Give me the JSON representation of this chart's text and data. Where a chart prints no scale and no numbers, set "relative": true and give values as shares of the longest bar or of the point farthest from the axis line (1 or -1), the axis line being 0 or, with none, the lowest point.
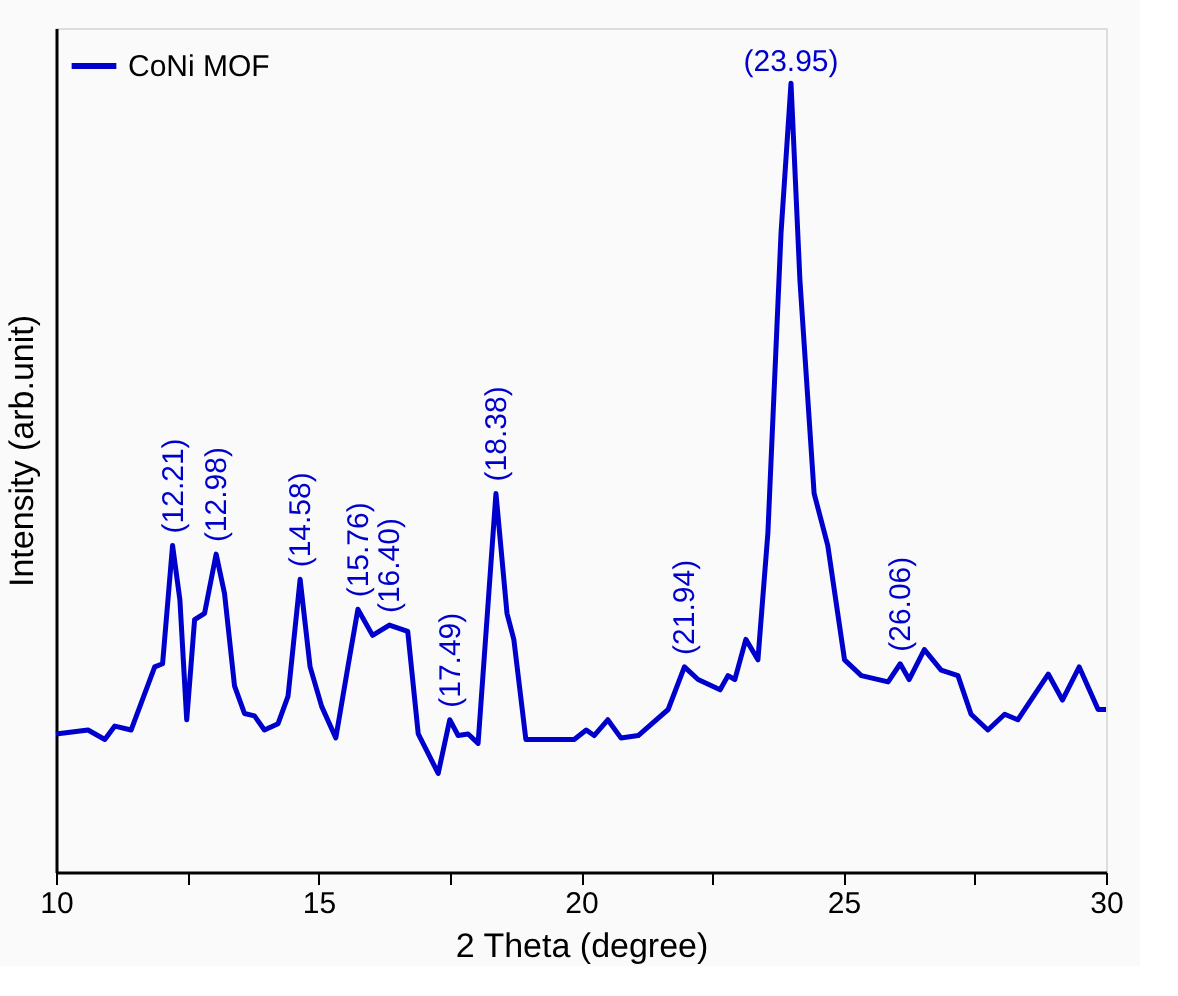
{
  "chart_data": {
    "type": "line",
    "xlabel": "2 Theta (degree)",
    "ylabel": "Intensity (arb.unit)",
    "relative": true,
    "xlim": [
      10,
      30
    ],
    "xticks": [
      10,
      {
        "value": 12.5,
        "label": null
      },
      15,
      {
        "value": 17.5,
        "label": null
      },
      20,
      {
        "value": 22.5,
        "label": null
      },
      25,
      {
        "value": 27.5,
        "label": null
      },
      30
    ],
    "grid": false,
    "legend": "top left",
    "marker": "none",
    "line_style": "solid",
    "series": [
      {
        "name": "CoNi MOF",
        "color": "#0000cc",
        "x": [
          10.0,
          10.61,
          10.93,
          11.12,
          11.43,
          11.88,
          12.03,
          12.22,
          12.36,
          12.49,
          12.64,
          12.83,
          13.05,
          13.21,
          13.4,
          13.59,
          13.78,
          13.97,
          14.23,
          14.42,
          14.65,
          14.84,
          15.06,
          15.33,
          15.56,
          15.75,
          16.03,
          16.35,
          16.7,
          16.9,
          17.09,
          17.28,
          17.5,
          17.66,
          17.85,
          18.04,
          18.38,
          18.59,
          18.72,
          18.95,
          19.87,
          20.1,
          20.25,
          20.51,
          20.76,
          21.09,
          21.66,
          21.97,
          22.23,
          22.65,
          22.8,
          22.93,
          23.14,
          23.37,
          23.56,
          23.81,
          24.0,
          24.17,
          24.44,
          24.7,
          25.02,
          25.34,
          25.85,
          26.08,
          26.25,
          26.54,
          26.86,
          27.18,
          27.43,
          27.75,
          28.07,
          28.32,
          28.9,
          29.17,
          29.49,
          29.85,
          30.0
        ],
        "values": [
          0.175,
          0.18,
          0.168,
          0.185,
          0.18,
          0.26,
          0.264,
          0.414,
          0.345,
          0.193,
          0.32,
          0.328,
          0.403,
          0.353,
          0.236,
          0.201,
          0.198,
          0.18,
          0.188,
          0.223,
          0.371,
          0.26,
          0.21,
          0.17,
          0.26,
          0.333,
          0.3,
          0.313,
          0.305,
          0.175,
          0.15,
          0.125,
          0.193,
          0.173,
          0.175,
          0.163,
          0.48,
          0.328,
          0.295,
          0.168,
          0.168,
          0.18,
          0.173,
          0.193,
          0.17,
          0.173,
          0.206,
          0.26,
          0.244,
          0.231,
          0.249,
          0.244,
          0.295,
          0.269,
          0.43,
          0.81,
          1.0,
          0.75,
          0.48,
          0.414,
          0.269,
          0.249,
          0.241,
          0.264,
          0.244,
          0.282,
          0.256,
          0.249,
          0.2,
          0.18,
          0.2,
          0.193,
          0.251,
          0.218,
          0.26,
          0.206,
          0.206
        ]
      }
    ],
    "annotations": [
      {
        "text": "(12.21)",
        "x": 12.22,
        "y": 0.414
      },
      {
        "text": "(12.98)",
        "x": 13.05,
        "y": 0.403
      },
      {
        "text": "(14.58)",
        "x": 14.65,
        "y": 0.371
      },
      {
        "text": "(15.76)",
        "x": 15.75,
        "y": 0.333
      },
      {
        "text": "(16.40)",
        "x": 16.35,
        "y": 0.313
      },
      {
        "text": "(17.49)",
        "x": 17.5,
        "y": 0.193
      },
      {
        "text": "(18.38)",
        "x": 18.38,
        "y": 0.48
      },
      {
        "text": "(21.94)",
        "x": 21.97,
        "y": 0.26
      },
      {
        "text": "(23.95)",
        "x": 24.0,
        "y": 1.0
      },
      {
        "text": "(26.06)",
        "x": 26.08,
        "y": 0.264
      }
    ]
  }
}
